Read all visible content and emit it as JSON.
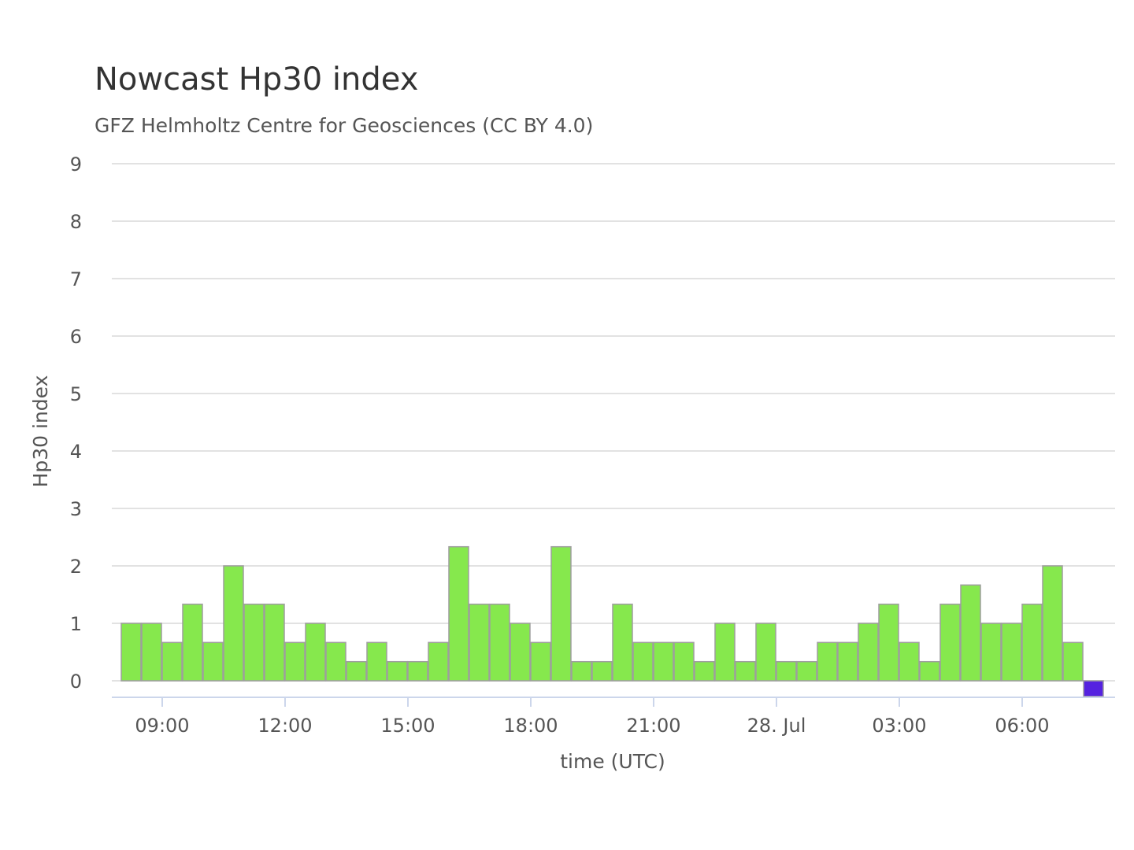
{
  "chart_data": {
    "type": "bar",
    "title": "Nowcast Hp30 index",
    "subtitle": "GFZ Helmholtz Centre for Geosciences (CC BY 4.0)",
    "xlabel": "time (UTC)",
    "ylabel": "Hp30 index",
    "ylim": [
      0,
      9
    ],
    "yticks": [
      0,
      1,
      2,
      3,
      4,
      5,
      6,
      7,
      8,
      9
    ],
    "x_tick_labels": [
      {
        "label": "09:00",
        "hours": 1
      },
      {
        "label": "12:00",
        "hours": 4
      },
      {
        "label": "15:00",
        "hours": 7
      },
      {
        "label": "18:00",
        "hours": 10
      },
      {
        "label": "21:00",
        "hours": 13
      },
      {
        "label": "28. Jul",
        "hours": 16
      },
      {
        "label": "03:00",
        "hours": 19
      },
      {
        "label": "06:00",
        "hours": 22
      }
    ],
    "grid": true,
    "series": [
      {
        "color": "#86e84d",
        "x": [
          "08:00",
          "08:30",
          "09:00",
          "09:30",
          "10:00",
          "10:30",
          "11:00",
          "11:30",
          "12:00",
          "12:30",
          "13:00",
          "13:30",
          "14:00",
          "14:30",
          "15:00",
          "15:30",
          "16:00",
          "16:30",
          "17:00",
          "17:30",
          "18:00",
          "18:30",
          "19:00",
          "19:30",
          "20:00",
          "20:30",
          "21:00",
          "21:30",
          "22:00",
          "22:30",
          "23:00",
          "23:30",
          "00:00",
          "00:30",
          "01:00",
          "01:30",
          "02:00",
          "02:30",
          "03:00",
          "03:30",
          "04:00",
          "04:30",
          "05:00",
          "05:30",
          "06:00",
          "06:30",
          "07:00"
        ],
        "values": [
          1.0,
          1.0,
          0.667,
          1.333,
          0.667,
          2.0,
          1.333,
          1.333,
          0.667,
          1.0,
          0.667,
          0.333,
          0.667,
          0.333,
          0.333,
          0.667,
          2.333,
          1.333,
          1.333,
          1.0,
          0.667,
          2.333,
          0.333,
          0.333,
          1.333,
          0.667,
          0.667,
          0.667,
          0.333,
          1.0,
          0.333,
          1.0,
          0.333,
          0.333,
          0.667,
          0.667,
          1.0,
          1.333,
          0.667,
          0.333,
          1.333,
          1.667,
          1.0,
          1.0,
          1.333,
          2.0,
          0.667
        ]
      },
      {
        "color": "#5522e0",
        "x": [
          "07:30"
        ],
        "values": [
          0.0
        ]
      }
    ]
  }
}
